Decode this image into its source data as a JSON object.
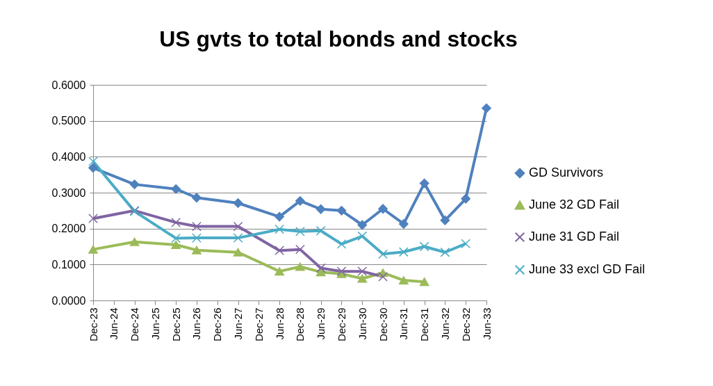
{
  "chart_data": {
    "type": "line",
    "title": "US gvts to total bonds and stocks",
    "categories": [
      "Dec-23",
      "Jun-24",
      "Dec-24",
      "Jun-25",
      "Dec-25",
      "Jun-26",
      "Dec-26",
      "Jun-27",
      "Dec-27",
      "Jun-28",
      "Dec-28",
      "Jun-29",
      "Dec-29",
      "Jun-30",
      "Dec-30",
      "Jun-31",
      "Dec-31",
      "Jun-32",
      "Dec-32",
      "Jun-33"
    ],
    "series": [
      {
        "name": "GD Survivors",
        "color": "#4f81bd",
        "marker": "diamond",
        "values": [
          0.369,
          null,
          0.323,
          null,
          0.31,
          0.286,
          null,
          0.271,
          null,
          0.233,
          0.277,
          0.254,
          0.25,
          0.21,
          0.255,
          0.213,
          0.326,
          0.223,
          0.283,
          0.535
        ]
      },
      {
        "name": "June 32 GD Fail",
        "color": "#9bbb59",
        "marker": "triangle",
        "values": [
          0.142,
          null,
          0.163,
          null,
          0.155,
          0.14,
          null,
          0.134,
          null,
          0.081,
          0.094,
          0.079,
          0.074,
          0.061,
          0.077,
          0.056,
          0.052,
          null,
          null,
          null
        ]
      },
      {
        "name": "June 31 GD Fail",
        "color": "#8064a2",
        "marker": "cross",
        "values": [
          0.228,
          null,
          0.25,
          null,
          0.217,
          0.206,
          null,
          0.206,
          null,
          0.139,
          0.142,
          0.09,
          0.081,
          0.081,
          0.066,
          null,
          null,
          null,
          null,
          null
        ]
      },
      {
        "name": "June 33 excl GD Fail",
        "color": "#4bacc6",
        "marker": "cross",
        "values": [
          0.387,
          null,
          0.248,
          null,
          0.173,
          0.174,
          null,
          0.174,
          null,
          0.198,
          0.192,
          0.194,
          0.157,
          0.179,
          0.129,
          0.135,
          0.15,
          0.134,
          0.158,
          null
        ]
      }
    ],
    "ylim": [
      0,
      0.6
    ],
    "yticks": [
      {
        "value": 0,
        "label": "0.0000"
      },
      {
        "value": 0.1,
        "label": "0.1000"
      },
      {
        "value": 0.2,
        "label": "0.2000"
      },
      {
        "value": 0.3,
        "label": "0.3000"
      },
      {
        "value": 0.4,
        "label": "0.4000"
      },
      {
        "value": 0.5,
        "label": "0.5000"
      },
      {
        "value": 0.6,
        "label": "0.6000"
      }
    ],
    "grid": "y",
    "legend": "right",
    "line_style": "solid"
  }
}
